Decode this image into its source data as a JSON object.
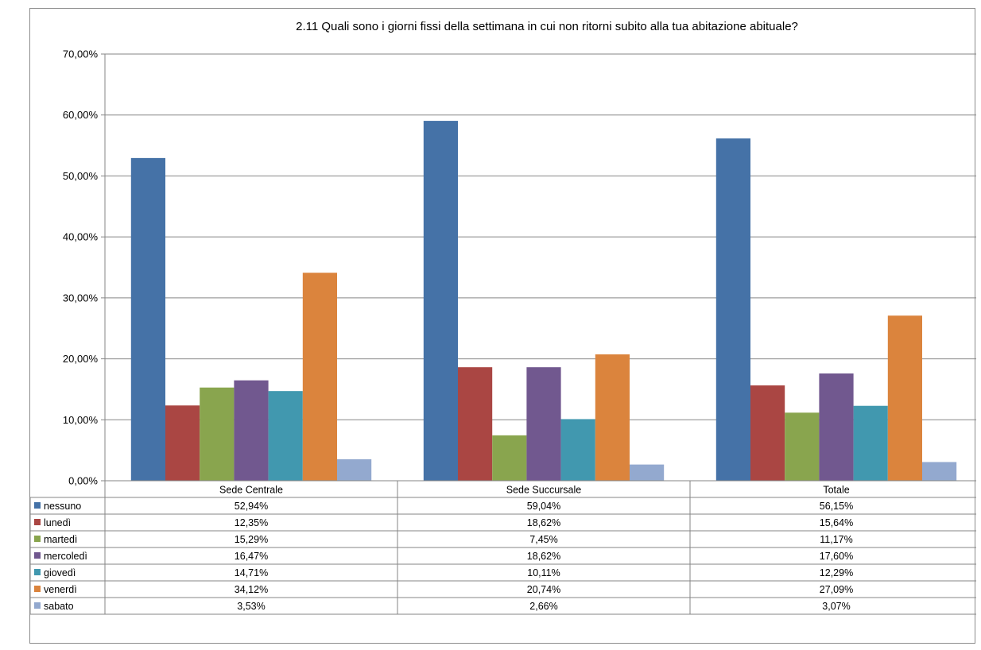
{
  "chart_data": {
    "type": "bar",
    "title": "2.11 Quali sono i giorni fissi della settimana in cui non ritorni subito alla tua abitazione abituale?",
    "categories": [
      "Sede Centrale",
      "Sede Succursale",
      "Totale"
    ],
    "ylim": [
      0,
      70
    ],
    "yticks": [
      "0,00%",
      "10,00%",
      "20,00%",
      "30,00%",
      "40,00%",
      "50,00%",
      "60,00%",
      "70,00%"
    ],
    "grid": true,
    "legend": "data-table-left",
    "series": [
      {
        "name": "nessuno",
        "color": "#4572a7",
        "values": [
          52.94,
          59.04,
          56.15
        ],
        "labels": [
          "52,94%",
          "59,04%",
          "56,15%"
        ]
      },
      {
        "name": "lunedì",
        "color": "#aa4643",
        "values": [
          12.35,
          18.62,
          15.64
        ],
        "labels": [
          "12,35%",
          "18,62%",
          "15,64%"
        ]
      },
      {
        "name": "martedì",
        "color": "#89a54e",
        "values": [
          15.29,
          7.45,
          11.17
        ],
        "labels": [
          "15,29%",
          "7,45%",
          "11,17%"
        ]
      },
      {
        "name": "mercoledì",
        "color": "#71588f",
        "values": [
          16.47,
          18.62,
          17.6
        ],
        "labels": [
          "16,47%",
          "18,62%",
          "17,60%"
        ]
      },
      {
        "name": "giovedì",
        "color": "#4198af",
        "values": [
          14.71,
          10.11,
          12.29
        ],
        "labels": [
          "14,71%",
          "10,11%",
          "12,29%"
        ]
      },
      {
        "name": "venerdì",
        "color": "#db843d",
        "values": [
          34.12,
          20.74,
          27.09
        ],
        "labels": [
          "34,12%",
          "20,74%",
          "27,09%"
        ]
      },
      {
        "name": "sabato",
        "color": "#93a9cf",
        "values": [
          3.53,
          2.66,
          3.07
        ],
        "labels": [
          "3,53%",
          "2,66%",
          "3,07%"
        ]
      }
    ]
  }
}
